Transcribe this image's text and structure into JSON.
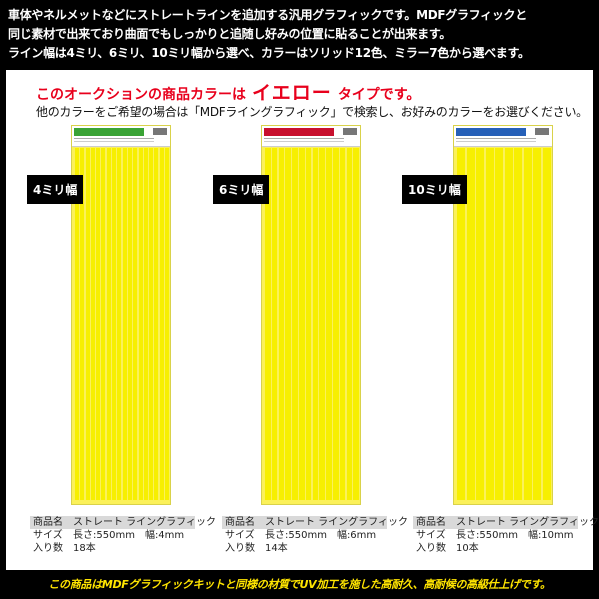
{
  "header": {
    "line1": "車体やネルメットなどにストレートラインを追加する汎用グラフィックです。MDFグラフィックと",
    "line2": "同じ素材で出来ており曲面でもしっかりと追随し好みの位置に貼ることが出来ます。",
    "line3": "ライン幅は4ミリ、6ミリ、10ミリ幅から選べ、カラーはソリッド12色、ミラー7色から選べます。"
  },
  "notice": {
    "prefix": "このオークションの商品カラーは",
    "color_name": "イエロー",
    "suffix": "タイプです。",
    "sub": "他のカラーをご希望の場合は「MDFライングラフィック」で検索し、お好みのカラーをお選びください。"
  },
  "products": [
    {
      "width_label": "4ミリ幅",
      "stripe_count": 18,
      "label_color": "#3aa335",
      "info": {
        "name_key": "商品名",
        "name_val": "ストレート ライングラフィック",
        "size_key": "サイズ",
        "size_val": "長さ:550mm　幅:4mm",
        "qty_key": "入り数",
        "qty_val": "18本"
      }
    },
    {
      "width_label": "6ミリ幅",
      "stripe_count": 14,
      "label_color": "#c8102e",
      "info": {
        "name_key": "商品名",
        "name_val": "ストレート ライングラフィック",
        "size_key": "サイズ",
        "size_val": "長さ:550mm　幅:6mm",
        "qty_key": "入り数",
        "qty_val": "14本"
      }
    },
    {
      "width_label": "10ミリ幅",
      "stripe_count": 10,
      "label_color": "#2660b8",
      "info": {
        "name_key": "商品名",
        "name_val": "ストレート ライングラフィック",
        "size_key": "サイズ",
        "size_val": "長さ:550mm　幅:10mm",
        "qty_key": "入り数",
        "qty_val": "10本"
      }
    }
  ],
  "footer": "この商品はMDFグラフィックキットと同様の材質でUV加工を施した高耐久、高耐候の高級仕上げです。",
  "colors": {
    "accent": "#e8001c",
    "stripe": "#f7ef00",
    "footer_text": "#ffe500"
  }
}
